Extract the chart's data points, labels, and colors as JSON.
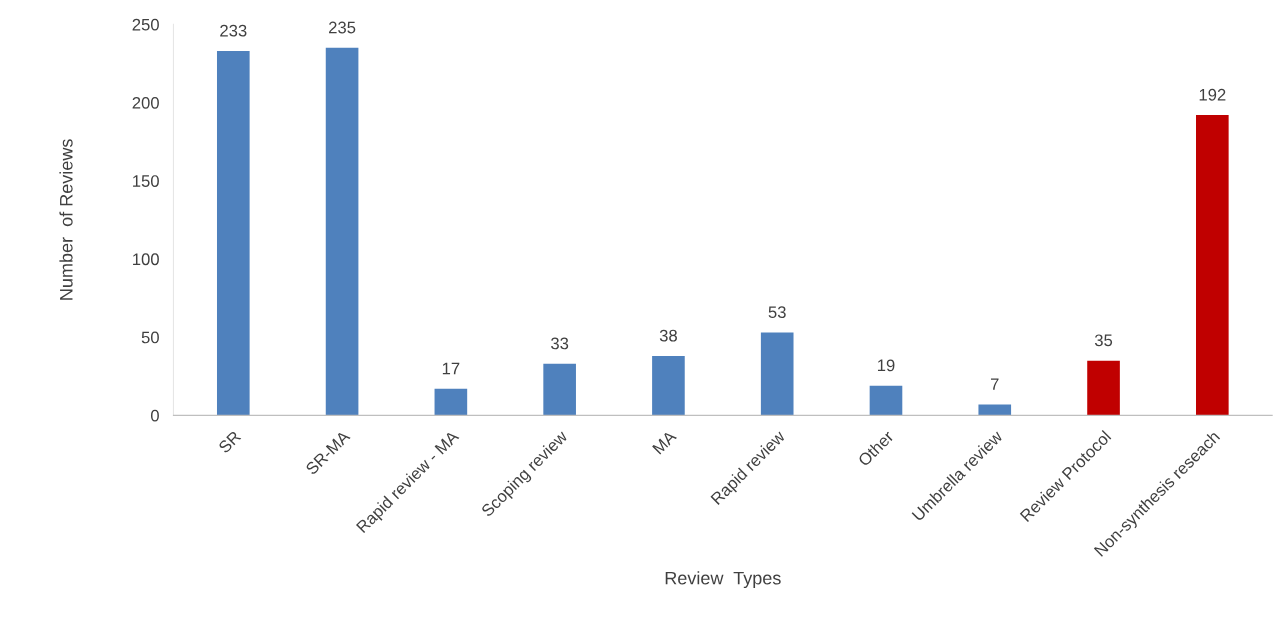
{
  "chart_data": {
    "type": "bar",
    "xlabel": "Review  Types",
    "ylabel": "Number  of Reviews",
    "categories": [
      "SR",
      "SR-MA",
      "Rapid review - MA",
      "Scoping review",
      "MA",
      "Rapid review",
      "Other",
      "Umbrella review",
      "Review Protocol",
      "Non-synthesis reseach"
    ],
    "values": [
      233,
      235,
      17,
      33,
      38,
      53,
      19,
      7,
      35,
      192
    ],
    "colors": [
      "#4f81bd",
      "#4f81bd",
      "#4f81bd",
      "#4f81bd",
      "#4f81bd",
      "#4f81bd",
      "#4f81bd",
      "#4f81bd",
      "#c00000",
      "#c00000"
    ],
    "ylim": [
      0,
      250
    ],
    "yticks": [
      0,
      50,
      100,
      150,
      200,
      250
    ],
    "grid": false,
    "data_labels": true
  }
}
